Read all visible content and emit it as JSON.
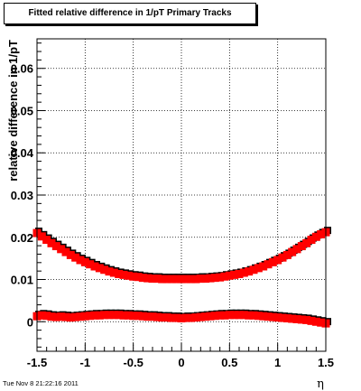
{
  "chart_data": {
    "type": "scatter",
    "title": "Fitted relative difference in 1/pT  Primary Tracks",
    "xlabel": "η",
    "ylabel": "relative difference in 1/pT",
    "xlim": [
      -1.5,
      1.5
    ],
    "ylim": [
      -0.007,
      0.067
    ],
    "x_ticks": [
      -1.5,
      -1,
      -0.5,
      0,
      0.5,
      1,
      1.5
    ],
    "x_tick_labels": [
      "-1.5",
      "-1",
      "-0.5",
      "0",
      "0.5",
      "1",
      "1.5"
    ],
    "y_ticks": [
      0,
      0.01,
      0.02,
      0.03,
      0.04,
      0.05,
      0.06
    ],
    "y_tick_labels": [
      "0",
      "0.01",
      "0.02",
      "0.03",
      "0.04",
      "0.05",
      "0.06"
    ],
    "grid": true,
    "series": [
      {
        "color": "#ff0000",
        "shadow_color": "#000000",
        "x": [
          -1.5,
          -1.45,
          -1.4,
          -1.35,
          -1.3,
          -1.25,
          -1.2,
          -1.15,
          -1.1,
          -1.05,
          -1.0,
          -0.95,
          -0.9,
          -0.85,
          -0.8,
          -0.75,
          -0.7,
          -0.65,
          -0.6,
          -0.55,
          -0.5,
          -0.45,
          -0.4,
          -0.35,
          -0.3,
          -0.25,
          -0.2,
          -0.15,
          -0.1,
          -0.05,
          0.0,
          0.05,
          0.1,
          0.15,
          0.2,
          0.25,
          0.3,
          0.35,
          0.4,
          0.45,
          0.5,
          0.55,
          0.6,
          0.65,
          0.7,
          0.75,
          0.8,
          0.85,
          0.9,
          0.95,
          1.0,
          1.05,
          1.1,
          1.15,
          1.2,
          1.25,
          1.3,
          1.35,
          1.4,
          1.45,
          1.5
        ],
        "values": [
          0.021,
          0.0202,
          0.0194,
          0.0186,
          0.0179,
          0.0172,
          0.0165,
          0.0158,
          0.0152,
          0.0146,
          0.0141,
          0.0136,
          0.0131,
          0.0127,
          0.0123,
          0.0119,
          0.0116,
          0.0113,
          0.0111,
          0.0109,
          0.0107,
          0.0106,
          0.0104,
          0.0103,
          0.0102,
          0.0102,
          0.0101,
          0.0101,
          0.0101,
          0.0101,
          0.0101,
          0.0101,
          0.0101,
          0.0101,
          0.0102,
          0.0102,
          0.0103,
          0.0104,
          0.0105,
          0.0107,
          0.0109,
          0.0111,
          0.0113,
          0.0116,
          0.0119,
          0.0123,
          0.0127,
          0.0131,
          0.0136,
          0.0141,
          0.0146,
          0.0152,
          0.0158,
          0.0165,
          0.0172,
          0.0179,
          0.0186,
          0.0194,
          0.0201,
          0.0207,
          0.0212
        ]
      },
      {
        "color": "#ff0000",
        "shadow_color": "#000000",
        "x": [
          -1.5,
          -1.45,
          -1.4,
          -1.35,
          -1.3,
          -1.25,
          -1.2,
          -1.15,
          -1.1,
          -1.05,
          -1.0,
          -0.95,
          -0.9,
          -0.85,
          -0.8,
          -0.75,
          -0.7,
          -0.65,
          -0.6,
          -0.55,
          -0.5,
          -0.45,
          -0.4,
          -0.35,
          -0.3,
          -0.25,
          -0.2,
          -0.15,
          -0.1,
          -0.05,
          0.0,
          0.05,
          0.1,
          0.15,
          0.2,
          0.25,
          0.3,
          0.35,
          0.4,
          0.45,
          0.5,
          0.55,
          0.6,
          0.65,
          0.7,
          0.75,
          0.8,
          0.85,
          0.9,
          0.95,
          1.0,
          1.05,
          1.1,
          1.15,
          1.2,
          1.25,
          1.3,
          1.35,
          1.4,
          1.45,
          1.5
        ],
        "values": [
          0.0013,
          0.0015,
          0.0014,
          0.0012,
          0.0011,
          0.0012,
          0.0011,
          0.001,
          0.0011,
          0.0012,
          0.0013,
          0.0014,
          0.0015,
          0.0015,
          0.0016,
          0.0016,
          0.0016,
          0.0016,
          0.0015,
          0.0015,
          0.0014,
          0.0014,
          0.0013,
          0.0012,
          0.0012,
          0.0011,
          0.001,
          0.001,
          0.0009,
          0.0009,
          0.0008,
          0.0009,
          0.0009,
          0.001,
          0.0011,
          0.0012,
          0.0013,
          0.0014,
          0.0015,
          0.0015,
          0.0016,
          0.0016,
          0.0016,
          0.0016,
          0.0015,
          0.0015,
          0.0014,
          0.0013,
          0.0012,
          0.0011,
          0.001,
          0.0009,
          0.0008,
          0.0007,
          0.0006,
          0.0005,
          0.0004,
          0.0002,
          0.0,
          -0.0002,
          -0.0004
        ]
      }
    ]
  },
  "footer": {
    "timestamp": "Tue Nov  8 21:22:16 2011"
  }
}
